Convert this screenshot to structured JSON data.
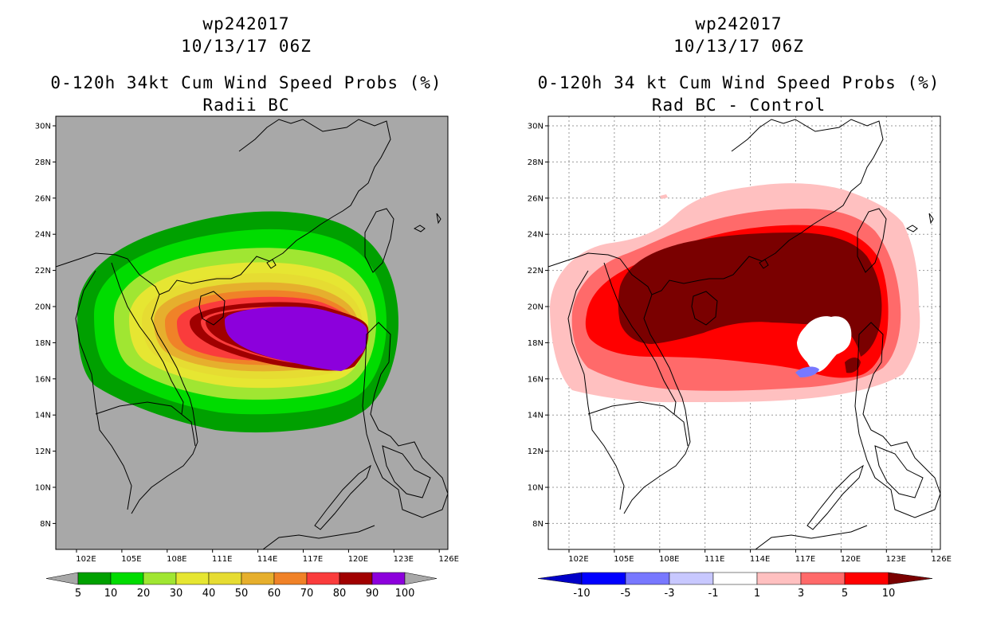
{
  "left_panel": {
    "storm_id": "wp242017",
    "datetime": "10/13/17 06Z",
    "product": "0-120h 34kt Cum Wind Speed Probs (%)",
    "subtitle": "Radii BC",
    "background_color": "#a8a8a8",
    "colorbar": {
      "labels": [
        "5",
        "10",
        "20",
        "30",
        "40",
        "50",
        "60",
        "70",
        "80",
        "90",
        "100"
      ],
      "colors": [
        "#00a000",
        "#00dc00",
        "#a0e632",
        "#e6e632",
        "#e6dc32",
        "#e6af2d",
        "#f08228",
        "#fa3c3c",
        "#a00000",
        "#8c00dc"
      ]
    }
  },
  "right_panel": {
    "storm_id": "wp242017",
    "datetime": "10/13/17 06Z",
    "product": "0-120h 34 kt Cum Wind Speed Probs (%)",
    "subtitle": "Rad BC - Control",
    "background_color": "#ffffff",
    "colorbar": {
      "labels": [
        "-10",
        "-5",
        "-3",
        "-1",
        "1",
        "3",
        "5",
        "10"
      ],
      "colors": [
        "#0000c8",
        "#0000ff",
        "#7878ff",
        "#c8c8ff",
        "#ffffff",
        "#ffc0c0",
        "#ff6a6a",
        "#ff0000",
        "#7a0000"
      ]
    }
  },
  "map_axes": {
    "lat_labels": [
      "30N",
      "28N",
      "26N",
      "24N",
      "22N",
      "20N",
      "18N",
      "16N",
      "14N",
      "12N",
      "10N",
      "8N"
    ],
    "lon_labels": [
      "102E",
      "105E",
      "108E",
      "111E",
      "114E",
      "117E",
      "120E",
      "123E",
      "126E"
    ]
  },
  "icons": [
    "coastline-outline",
    "colorbar-arrow-left",
    "colorbar-arrow-right"
  ]
}
